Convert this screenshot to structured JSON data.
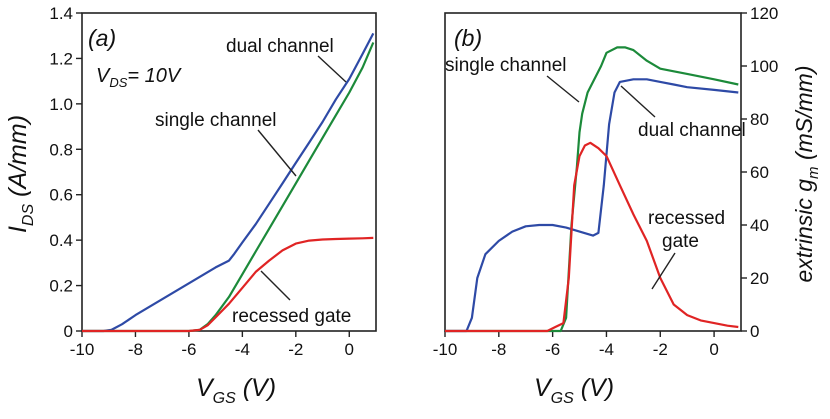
{
  "chart_data": [
    {
      "panel": "(a)",
      "type": "line",
      "condition_prefix": "V",
      "condition_sub": "DS",
      "condition_value": "= 10V",
      "xlabel": "V",
      "xlabel_sub": "GS",
      "xlabel_unit": " (V)",
      "ylabel": "I",
      "ylabel_sub": "DS",
      "ylabel_unit": " (A/mm)",
      "xlim": [
        -10,
        1
      ],
      "ylim": [
        0,
        1.4
      ],
      "x_ticks": [
        -10,
        -8,
        -6,
        -4,
        -2,
        0
      ],
      "x_tick_labels": [
        "-10",
        "-8",
        "-6",
        "-4",
        "-2",
        "0"
      ],
      "y_ticks": [
        0,
        0.2,
        0.4,
        0.6,
        0.8,
        1.0,
        1.2,
        1.4
      ],
      "y_tick_labels": [
        "0",
        "0.2",
        "0.4",
        "0.6",
        "0.8",
        "1.0",
        "1.2",
        "1.4"
      ],
      "series": [
        {
          "name": "dual channel",
          "color": "#2e4aa6",
          "x": [
            -10,
            -9.2,
            -8.9,
            -8.5,
            -8,
            -7,
            -6,
            -5,
            -4.5,
            -4.3,
            -4,
            -3.5,
            -3,
            -2.5,
            -2,
            -1.5,
            -1,
            -0.5,
            0,
            0.5,
            0.9
          ],
          "y": [
            0,
            0,
            0.005,
            0.03,
            0.07,
            0.14,
            0.21,
            0.28,
            0.31,
            0.34,
            0.39,
            0.47,
            0.56,
            0.65,
            0.74,
            0.83,
            0.92,
            1.02,
            1.11,
            1.22,
            1.31
          ]
        },
        {
          "name": "single channel",
          "color": "#1c8a3a",
          "x": [
            -10,
            -6,
            -5.6,
            -5.3,
            -5,
            -4.5,
            -4,
            -3.5,
            -3,
            -2.5,
            -2,
            -1.5,
            -1,
            -0.5,
            0,
            0.5,
            0.9
          ],
          "y": [
            0,
            0,
            0.005,
            0.03,
            0.07,
            0.15,
            0.25,
            0.35,
            0.45,
            0.55,
            0.65,
            0.75,
            0.85,
            0.95,
            1.05,
            1.16,
            1.27
          ]
        },
        {
          "name": "recessed gate",
          "color": "#e02424",
          "x": [
            -10,
            -6,
            -5.6,
            -5.3,
            -5,
            -4.5,
            -4,
            -3.5,
            -3,
            -2.5,
            -2,
            -1.5,
            -1,
            -0.5,
            0,
            0.5,
            0.9
          ],
          "y": [
            0,
            0,
            0.005,
            0.025,
            0.06,
            0.12,
            0.19,
            0.26,
            0.31,
            0.355,
            0.385,
            0.398,
            0.403,
            0.405,
            0.407,
            0.408,
            0.41
          ]
        }
      ]
    },
    {
      "panel": "(b)",
      "type": "line",
      "xlabel": "V",
      "xlabel_sub": "GS",
      "xlabel_unit": " (V)",
      "ylabel": "extrinsic g",
      "ylabel_sub": "m",
      "ylabel_unit": " (mS/mm)",
      "xlim": [
        -10,
        1
      ],
      "ylim": [
        0,
        120
      ],
      "x_ticks": [
        -10,
        -8,
        -6,
        -4,
        -2,
        0
      ],
      "x_tick_labels": [
        "-10",
        "-8",
        "-6",
        "-4",
        "-2",
        "0"
      ],
      "y_ticks": [
        0,
        20,
        40,
        60,
        80,
        100,
        120
      ],
      "y_tick_labels": [
        "0",
        "20",
        "40",
        "60",
        "80",
        "100",
        "120"
      ],
      "series": [
        {
          "name": "single channel",
          "color": "#1c8a3a",
          "x": [
            -10,
            -5.7,
            -5.5,
            -5.3,
            -5.1,
            -5.0,
            -4.9,
            -4.7,
            -4.5,
            -4.2,
            -4.0,
            -3.6,
            -3.3,
            -3.0,
            -2.5,
            -2.0,
            -1.5,
            -1.0,
            0,
            0.9
          ],
          "y": [
            0,
            0,
            5,
            40,
            62,
            75,
            82,
            90,
            94,
            100,
            105,
            107,
            107,
            106,
            102,
            99,
            98,
            97,
            95,
            93
          ]
        },
        {
          "name": "dual channel",
          "color": "#2e4aa6",
          "x": [
            -10,
            -9.2,
            -9.0,
            -8.8,
            -8.5,
            -8.0,
            -7.5,
            -7.0,
            -6.5,
            -6.0,
            -5.5,
            -5.0,
            -4.5,
            -4.3,
            -4.1,
            -3.9,
            -3.7,
            -3.5,
            -3.0,
            -2.5,
            -2.0,
            -1.5,
            -1.0,
            0,
            0.9
          ],
          "y": [
            0,
            0,
            5,
            20,
            29,
            34,
            37.5,
            39.5,
            40,
            40,
            39,
            37.5,
            36,
            37,
            55,
            78,
            90,
            94,
            95,
            95,
            94,
            93,
            92,
            91,
            90
          ]
        },
        {
          "name": "recessed gate",
          "color": "#e02424",
          "x": [
            -10,
            -6.2,
            -5.9,
            -5.6,
            -5.4,
            -5.2,
            -5.0,
            -4.8,
            -4.6,
            -4.3,
            -4.0,
            -3.5,
            -3.0,
            -2.5,
            -2.0,
            -1.5,
            -1.0,
            -0.5,
            0,
            0.5,
            0.9
          ],
          "y": [
            0,
            0,
            1.5,
            3,
            20,
            55,
            66,
            70,
            71,
            69,
            66,
            55,
            44,
            34,
            20,
            10,
            6,
            4,
            3,
            2,
            1.5
          ]
        }
      ]
    }
  ],
  "annotations": {
    "a_dual": "dual channel",
    "a_single": "single channel",
    "a_recessed": "recessed gate",
    "b_single": "single channel",
    "b_dual": "dual channel",
    "b_recessed_1": "recessed",
    "b_recessed_2": "gate"
  }
}
